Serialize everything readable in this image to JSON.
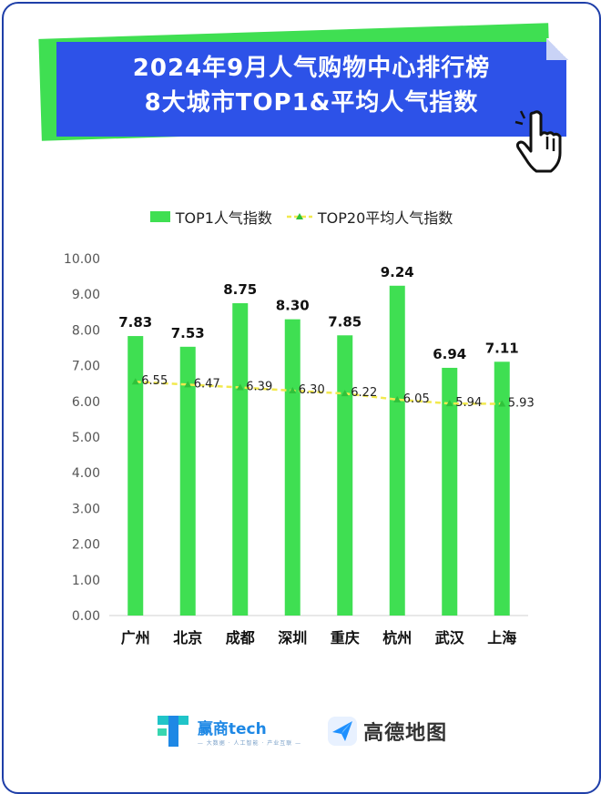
{
  "title": {
    "line1": "2024年9月人气购物中心排行榜",
    "line2": "8大城市TOP1&平均人气指数"
  },
  "legend": {
    "bar_label": "TOP1人气指数",
    "line_label": "TOP20平均人气指数"
  },
  "colors": {
    "bar": "#3fdf52",
    "line": "#f2e94e",
    "marker": "#2fc23b",
    "banner_blue": "#2d52e8",
    "banner_green": "#3fdf52",
    "border": "#1e3ea8"
  },
  "chart_data": {
    "type": "bar",
    "categories": [
      "广州",
      "北京",
      "成都",
      "深圳",
      "重庆",
      "杭州",
      "武汉",
      "上海"
    ],
    "series": [
      {
        "name": "TOP1人气指数",
        "type": "bar",
        "values": [
          7.83,
          7.53,
          8.75,
          8.3,
          7.85,
          9.24,
          6.94,
          7.11
        ]
      },
      {
        "name": "TOP20平均人气指数",
        "type": "line",
        "values": [
          6.55,
          6.47,
          6.39,
          6.3,
          6.22,
          6.05,
          5.94,
          5.93
        ]
      }
    ],
    "bar_labels": [
      "7.83",
      "7.53",
      "8.75",
      "8.30",
      "7.85",
      "9.24",
      "6.94",
      "7.11"
    ],
    "line_labels": [
      "6.55",
      "6.47",
      "6.39",
      "6.30",
      "6.22",
      "6.05",
      "5.94",
      "5.93"
    ],
    "yticks": [
      "0.00",
      "1.00",
      "2.00",
      "3.00",
      "4.00",
      "5.00",
      "6.00",
      "7.00",
      "8.00",
      "9.00",
      "10.00"
    ],
    "ylim": [
      0,
      10
    ],
    "xlabel": "",
    "ylabel": "",
    "grid": false,
    "legend_position": "top"
  },
  "footer": {
    "brand1_name": "赢商tech",
    "brand1_sub": "— 大数据 · 人工智能 · 产业互联 —",
    "brand2_name": "高德地图"
  }
}
